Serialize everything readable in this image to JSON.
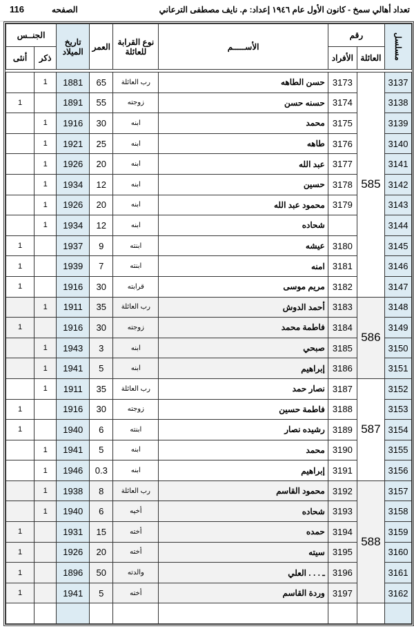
{
  "title": "تعداد أهالي سمخ - كانون الأول عام ١٩٤٦   إعداد: م. نايف مصطفى الترعاني",
  "page_label": "الصفحه",
  "page_number": "116",
  "headers": {
    "serial": "مسلسل",
    "number": "رقم",
    "family": "العائلة",
    "individuals": "الأفراد",
    "name": "الأســـــم",
    "relation": "نوع القرابة للعائلة",
    "age": "العمر",
    "birth": "تاريخ الميلاد",
    "gender": "الجنــس",
    "male": "ذكر",
    "female": "أنثى"
  },
  "groups": [
    {
      "family": "585",
      "shaded": false,
      "rows": [
        [
          "3137",
          "3173",
          "حسن الطاهه",
          "رب العائلة",
          "65",
          "1881",
          "1",
          ""
        ],
        [
          "3138",
          "3174",
          "حسنه حسن",
          "زوجته",
          "55",
          "1891",
          "",
          "1"
        ],
        [
          "3139",
          "3175",
          "محمد",
          "ابنه",
          "30",
          "1916",
          "1",
          ""
        ],
        [
          "3140",
          "3176",
          "طاهه",
          "ابنه",
          "25",
          "1921",
          "1",
          ""
        ],
        [
          "3141",
          "3177",
          "عبد الله",
          "ابنه",
          "20",
          "1926",
          "1",
          ""
        ],
        [
          "3142",
          "3178",
          "حسين",
          "ابنه",
          "12",
          "1934",
          "1",
          ""
        ],
        [
          "3143",
          "3179",
          "محمود عبد الله",
          "ابنه",
          "20",
          "1926",
          "1",
          ""
        ],
        [
          "3144",
          "",
          "شحاده",
          "ابنه",
          "12",
          "1934",
          "1",
          ""
        ],
        [
          "3145",
          "3180",
          "عيشه",
          "ابنته",
          "9",
          "1937",
          "",
          "1"
        ],
        [
          "3146",
          "3181",
          "امنه",
          "ابنته",
          "7",
          "1939",
          "",
          "1"
        ],
        [
          "3147",
          "3182",
          "مريم موسى",
          "قرابته",
          "30",
          "1916",
          "",
          "1"
        ]
      ]
    },
    {
      "family": "586",
      "shaded": true,
      "rows": [
        [
          "3148",
          "3183",
          "أحمد الدوش",
          "رب العائلة",
          "35",
          "1911",
          "1",
          ""
        ],
        [
          "3149",
          "3184",
          "فاطمة محمد",
          "زوجته",
          "30",
          "1916",
          "",
          "1"
        ],
        [
          "3150",
          "3185",
          "صبحي",
          "ابنه",
          "3",
          "1943",
          "1",
          ""
        ],
        [
          "3151",
          "3186",
          "إبراهيم",
          "ابنه",
          "5",
          "1941",
          "1",
          ""
        ]
      ]
    },
    {
      "family": "587",
      "shaded": false,
      "rows": [
        [
          "3152",
          "3187",
          "نصار حمد",
          "رب العائلة",
          "35",
          "1911",
          "1",
          ""
        ],
        [
          "3153",
          "3188",
          "فاطمة حسين",
          "زوجته",
          "30",
          "1916",
          "",
          "1"
        ],
        [
          "3154",
          "3189",
          "رشيده نصار",
          "ابنته",
          "6",
          "1940",
          "",
          "1"
        ],
        [
          "3155",
          "3190",
          "محمد",
          "ابنه",
          "5",
          "1941",
          "1",
          ""
        ],
        [
          "3156",
          "3191",
          "إبراهيم",
          "ابنه",
          "0.3",
          "1946",
          "1",
          ""
        ]
      ]
    },
    {
      "family": "588",
      "shaded": true,
      "rows": [
        [
          "3157",
          "3192",
          "محمود القاسم",
          "رب العائلة",
          "8",
          "1938",
          "1",
          ""
        ],
        [
          "3158",
          "3193",
          "شحاده",
          "أخيه",
          "6",
          "1940",
          "1",
          ""
        ],
        [
          "3159",
          "3194",
          "حمده",
          "أخته",
          "15",
          "1931",
          "",
          "1"
        ],
        [
          "3160",
          "3195",
          "سيته",
          "أخته",
          "20",
          "1926",
          "",
          "1"
        ],
        [
          "3161",
          "3196",
          "ـ . . . العلي",
          "والدته",
          "50",
          "1896",
          "",
          "1"
        ],
        [
          "3162",
          "3197",
          "وردة القاسم",
          "أخته",
          "5",
          "1941",
          "",
          "1"
        ]
      ]
    }
  ]
}
